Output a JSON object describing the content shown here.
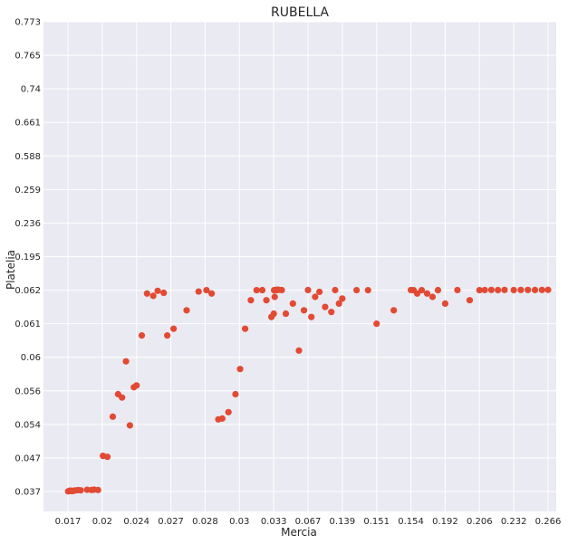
{
  "chart_data": {
    "type": "scatter",
    "title": "RUBELLA",
    "xlabel": "Mercia",
    "ylabel": "Platelia",
    "x_ticks": [
      "0.017",
      "0.02",
      "0.024",
      "0.027",
      "0.028",
      "0.03",
      "0.033",
      "0.067",
      "0.139",
      "0.151",
      "0.154",
      "0.192",
      "0.206",
      "0.232",
      "0.266"
    ],
    "y_ticks": [
      "0.037",
      "0.047",
      "0.054",
      "0.056",
      "0.06",
      "0.061",
      "0.062",
      "0.195",
      "0.236",
      "0.259",
      "0.588",
      "0.661",
      "0.74",
      "0.765",
      "0.773"
    ],
    "grid": true,
    "marker_color": "#E24A33",
    "background_color": "#EAEAF2",
    "points": [
      [
        0.01702,
        0.03705
      ],
      [
        0.01709,
        0.03713
      ],
      [
        0.01717,
        0.03725
      ],
      [
        0.01723,
        0.03717
      ],
      [
        0.01731,
        0.0372
      ],
      [
        0.01738,
        0.03712
      ],
      [
        0.01749,
        0.03722
      ],
      [
        0.01765,
        0.03732
      ],
      [
        0.01788,
        0.03742
      ],
      [
        0.01811,
        0.03735
      ],
      [
        0.01868,
        0.03752
      ],
      [
        0.01906,
        0.03745
      ],
      [
        0.01929,
        0.03755
      ],
      [
        0.01963,
        0.03745
      ],
      [
        0.02009,
        0.04743
      ],
      [
        0.0206,
        0.04723
      ],
      [
        0.02123,
        0.05446
      ],
      [
        0.02185,
        0.0558
      ],
      [
        0.02231,
        0.0556
      ],
      [
        0.02277,
        0.05952
      ],
      [
        0.02323,
        0.0538
      ],
      [
        0.02369,
        0.05643
      ],
      [
        0.024,
        0.05664
      ],
      [
        0.02446,
        0.06065
      ],
      [
        0.02492,
        0.0619
      ],
      [
        0.02546,
        0.06183
      ],
      [
        0.02585,
        0.06198
      ],
      [
        0.02638,
        0.06192
      ],
      [
        0.02669,
        0.06065
      ],
      [
        0.02708,
        0.06085
      ],
      [
        0.02746,
        0.0614
      ],
      [
        0.02781,
        0.06196
      ],
      [
        0.02808,
        0.062
      ],
      [
        0.02838,
        0.0619
      ],
      [
        0.02877,
        0.0543
      ],
      [
        0.029,
        0.05435
      ],
      [
        0.02936,
        0.05473
      ],
      [
        0.02977,
        0.0558
      ],
      [
        0.03006,
        0.0586
      ],
      [
        0.0305,
        0.06085
      ],
      [
        0.031,
        0.0617
      ],
      [
        0.0315,
        0.0621
      ],
      [
        0.032,
        0.06215
      ],
      [
        0.03236,
        0.0617
      ],
      [
        0.0328,
        0.0612
      ],
      [
        0.03306,
        0.0613
      ],
      [
        0.0334,
        0.062
      ],
      [
        0.03365,
        0.0621
      ],
      [
        0.034,
        0.0618
      ],
      [
        0.0346,
        0.0624
      ],
      [
        0.0351,
        0.0628
      ],
      [
        0.0356,
        0.0629
      ],
      [
        0.0362,
        0.0627
      ],
      [
        0.037,
        0.0631
      ],
      [
        0.038,
        0.0633
      ],
      [
        0.041,
        0.0622
      ],
      [
        0.045,
        0.0613
      ],
      [
        0.052,
        0.0616
      ],
      [
        0.058,
        0.0602
      ],
      [
        0.063,
        0.0614
      ],
      [
        0.067,
        0.0624
      ],
      [
        0.074,
        0.0612
      ],
      [
        0.082,
        0.0618
      ],
      [
        0.091,
        0.06195
      ],
      [
        0.103,
        0.0615
      ],
      [
        0.116,
        0.06135
      ],
      [
        0.124,
        0.0622
      ],
      [
        0.132,
        0.0616
      ],
      [
        0.139,
        0.06175
      ],
      [
        0.144,
        0.0621
      ],
      [
        0.148,
        0.0621
      ],
      [
        0.151,
        0.061
      ],
      [
        0.1525,
        0.0614
      ],
      [
        0.154,
        0.0624
      ],
      [
        0.157,
        0.062
      ],
      [
        0.161,
        0.0619
      ],
      [
        0.166,
        0.0621
      ],
      [
        0.172,
        0.0619
      ],
      [
        0.178,
        0.0618
      ],
      [
        0.184,
        0.06215
      ],
      [
        0.192,
        0.0616
      ],
      [
        0.197,
        0.0624
      ],
      [
        0.202,
        0.0617
      ],
      [
        0.206,
        0.062
      ],
      [
        0.21,
        0.0625
      ],
      [
        0.215,
        0.063
      ],
      [
        0.22,
        0.0623
      ],
      [
        0.225,
        0.0628
      ],
      [
        0.232,
        0.0623
      ],
      [
        0.239,
        0.0629
      ],
      [
        0.246,
        0.063
      ],
      [
        0.253,
        0.0626
      ],
      [
        0.26,
        0.063
      ],
      [
        0.266,
        0.0631
      ]
    ]
  }
}
